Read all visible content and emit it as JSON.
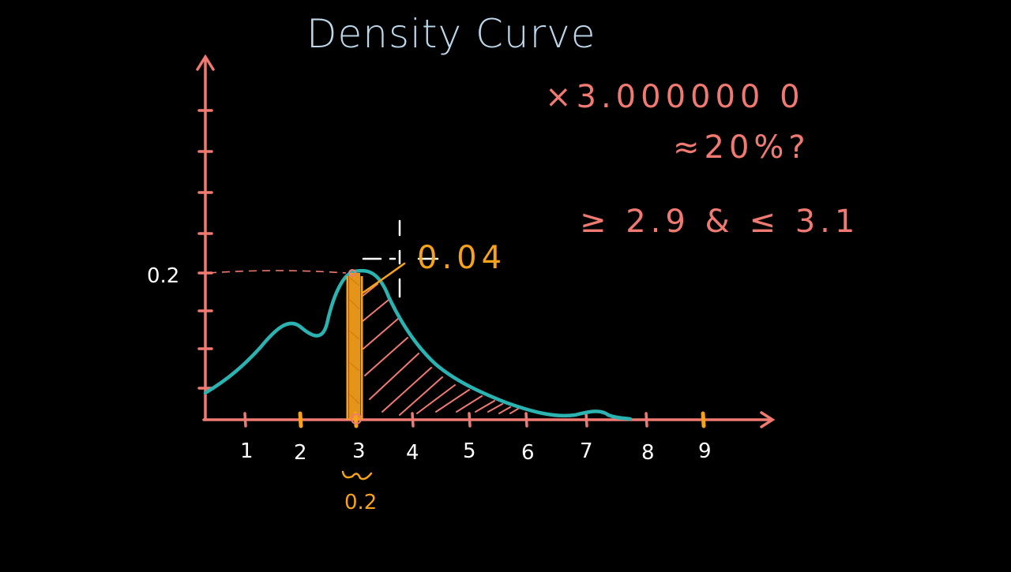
{
  "title": "Density Curve",
  "colors": {
    "background": "#000000",
    "axis": "#f07a72",
    "curve": "#2bb3b1",
    "highlight": "#f7a21b",
    "title": "#bcd7ea",
    "chalk_white": "#ffffff",
    "note_red": "#f07a72"
  },
  "axes": {
    "y_marker_label": "0.2",
    "x_tick_labels": [
      "1",
      "2",
      "3",
      "4",
      "5",
      "6",
      "7",
      "8",
      "9"
    ]
  },
  "annotations": {
    "area_value": "0.04",
    "width_value": "0.2",
    "target_value": "×3.000000 0",
    "approx_question": "≈20%?",
    "interval": "≥ 2.9 & ≤ 3.1"
  }
}
